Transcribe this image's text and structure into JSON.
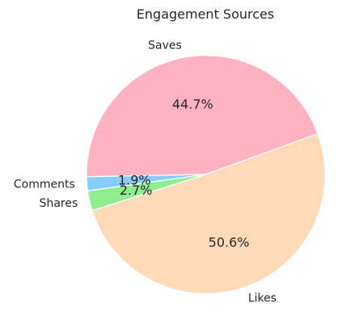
{
  "chart_data": {
    "type": "pie",
    "title": "Engagement Sources",
    "slices": [
      {
        "label": "Saves",
        "value": 44.7,
        "pct_label": "44.7%",
        "color": "#FFB3C1"
      },
      {
        "label": "Comments",
        "value": 1.9,
        "pct_label": "1.9%",
        "color": "#87CEFA"
      },
      {
        "label": "Shares",
        "value": 2.7,
        "pct_label": "2.7%",
        "color": "#90EE90"
      },
      {
        "label": "Likes",
        "value": 50.6,
        "pct_label": "50.6%",
        "color": "#FFDAB9"
      }
    ],
    "legend": "none",
    "edge_color": "#ffffff"
  }
}
